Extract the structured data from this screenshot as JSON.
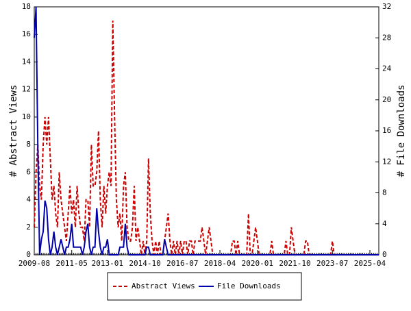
{
  "chart_data": {
    "type": "line",
    "x": [
      "2009-08",
      "2009-09",
      "2009-10",
      "2009-11",
      "2009-12",
      "2010-01",
      "2010-02",
      "2010-03",
      "2010-04",
      "2010-05",
      "2010-06",
      "2010-07",
      "2010-08",
      "2010-09",
      "2010-10",
      "2010-11",
      "2010-12",
      "2011-01",
      "2011-02",
      "2011-03",
      "2011-04",
      "2011-05",
      "2011-06",
      "2011-07",
      "2011-08",
      "2011-09",
      "2011-10",
      "2011-11",
      "2011-12",
      "2012-01",
      "2012-02",
      "2012-03",
      "2012-04",
      "2012-05",
      "2012-06",
      "2012-07",
      "2012-08",
      "2012-09",
      "2012-10",
      "2012-11",
      "2012-12",
      "2013-01",
      "2013-02",
      "2013-03",
      "2013-04",
      "2013-05",
      "2013-06",
      "2013-07",
      "2013-08",
      "2013-09",
      "2013-10",
      "2013-11",
      "2013-12",
      "2014-01",
      "2014-02",
      "2014-03",
      "2014-04",
      "2014-05",
      "2014-06",
      "2014-07",
      "2014-08",
      "2014-09",
      "2014-10",
      "2014-11",
      "2014-12",
      "2015-01",
      "2015-02",
      "2015-03",
      "2015-04",
      "2015-05",
      "2015-06",
      "2015-07",
      "2015-08",
      "2015-09",
      "2015-10",
      "2015-11",
      "2015-12",
      "2016-01",
      "2016-02",
      "2016-03",
      "2016-04",
      "2016-05",
      "2016-06",
      "2016-07",
      "2016-08",
      "2016-09",
      "2016-10",
      "2016-11",
      "2016-12",
      "2017-01",
      "2017-02",
      "2017-03",
      "2017-04",
      "2017-05",
      "2017-06",
      "2017-07",
      "2017-08",
      "2017-09",
      "2017-10",
      "2017-11",
      "2017-12",
      "2018-01",
      "2018-02",
      "2018-03",
      "2018-04",
      "2018-05",
      "2018-06",
      "2018-07",
      "2018-08",
      "2018-09",
      "2018-10",
      "2018-11",
      "2018-12",
      "2019-01",
      "2019-02",
      "2019-03",
      "2019-04",
      "2019-05",
      "2019-06",
      "2019-07",
      "2019-08",
      "2019-09",
      "2019-10",
      "2019-11",
      "2019-12",
      "2020-01",
      "2020-02",
      "2020-03",
      "2020-04",
      "2020-05",
      "2020-06",
      "2020-07",
      "2020-08",
      "2020-09",
      "2020-10",
      "2020-11",
      "2020-12",
      "2021-01",
      "2021-02",
      "2021-03",
      "2021-04",
      "2021-05",
      "2021-06",
      "2021-07",
      "2021-08",
      "2021-09",
      "2021-10",
      "2021-11",
      "2021-12",
      "2022-01",
      "2022-02",
      "2022-03",
      "2022-04",
      "2022-05",
      "2022-06",
      "2022-07",
      "2022-08",
      "2022-09",
      "2022-10",
      "2022-11",
      "2022-12",
      "2023-01",
      "2023-02",
      "2023-03",
      "2023-04",
      "2023-05",
      "2023-06",
      "2023-07",
      "2023-08",
      "2023-09",
      "2023-10",
      "2023-11",
      "2023-12",
      "2024-01",
      "2024-02",
      "2024-03",
      "2024-04",
      "2024-05",
      "2024-06",
      "2024-07",
      "2024-08",
      "2024-09",
      "2024-10",
      "2024-11",
      "2024-12",
      "2025-01",
      "2025-02",
      "2025-03",
      "2025-04",
      "2025-05",
      "2025-06",
      "2025-07",
      "2025-08",
      "2025-09"
    ],
    "xticks": [
      "2009-08",
      "2011-05",
      "2013-01",
      "2014-10",
      "2016-07",
      "2018-04",
      "2020-01",
      "2021-10",
      "2023-07",
      "2025-04"
    ],
    "ylabel": "# Abstract Views",
    "y2label": "# File Downloads",
    "ylim": [
      0,
      18
    ],
    "yticks": [
      0,
      2,
      4,
      6,
      8,
      10,
      12,
      14,
      16,
      18
    ],
    "y2lim": [
      0,
      32
    ],
    "y2ticks": [
      0,
      4,
      8,
      12,
      16,
      20,
      24,
      28,
      32
    ],
    "legend": "bottom",
    "series": [
      {
        "name": "Abstract Views",
        "color": "#cc0000",
        "dash": true,
        "values": [
          2,
          6,
          8,
          5,
          4,
          8,
          10,
          8,
          10,
          7,
          4,
          5,
          3,
          2,
          6,
          4,
          3,
          2,
          1,
          3,
          5,
          3,
          4,
          2,
          5,
          3,
          2,
          2,
          1,
          4,
          4,
          2,
          8,
          5,
          5,
          6,
          9,
          4,
          2,
          5,
          3,
          5,
          6,
          5,
          17,
          10,
          4,
          2,
          3,
          1,
          5,
          6,
          2,
          1,
          1,
          2,
          5,
          1,
          2,
          1,
          0,
          1,
          0,
          1,
          7,
          3,
          1,
          0,
          1,
          0,
          1,
          0,
          0,
          1,
          2,
          3,
          1,
          0,
          1,
          0,
          1,
          0,
          1,
          0,
          1,
          1,
          0,
          1,
          1,
          0,
          1,
          1,
          1,
          1,
          2,
          1,
          0,
          1,
          2,
          1,
          0,
          0,
          0,
          0,
          0,
          0,
          0,
          0,
          0,
          0,
          0,
          1,
          1,
          0,
          1,
          0,
          0,
          0,
          0,
          0,
          3,
          0,
          0,
          1,
          2,
          1,
          0,
          0,
          0,
          0,
          0,
          0,
          0,
          1,
          0,
          0,
          0,
          0,
          0,
          0,
          0,
          1,
          0,
          0,
          2,
          1,
          0,
          0,
          0,
          0,
          0,
          0,
          1,
          1,
          0,
          0,
          0,
          0,
          0,
          0,
          0,
          0,
          0,
          0,
          0,
          0,
          0,
          1,
          0,
          0,
          0,
          0,
          0,
          0,
          0,
          0,
          0,
          0,
          0,
          0,
          0,
          0,
          0,
          0,
          0,
          0,
          0,
          0,
          0,
          0,
          0,
          0,
          0,
          0
        ]
      },
      {
        "name": "File Downloads",
        "color": "#0000aa",
        "axis": "y2",
        "values": [
          28,
          32,
          14,
          0,
          2,
          3,
          7,
          6,
          2,
          0,
          1,
          3,
          1,
          0,
          1,
          2,
          1,
          0,
          1,
          1,
          2,
          4,
          1,
          1,
          1,
          1,
          1,
          0,
          1,
          3,
          4,
          1,
          0,
          1,
          1,
          6,
          3,
          1,
          0,
          1,
          1,
          2,
          0,
          0,
          0,
          0,
          0,
          0,
          1,
          1,
          1,
          4,
          1,
          0,
          0,
          0,
          0,
          0,
          0,
          0,
          0,
          0,
          0,
          1,
          1,
          0,
          0,
          0,
          0,
          0,
          0,
          0,
          0,
          2,
          1,
          0,
          0,
          0,
          0,
          0,
          0,
          0,
          0,
          0,
          0,
          0,
          0,
          0,
          0,
          0,
          0,
          0,
          0,
          0,
          0,
          0,
          0,
          0,
          0,
          0,
          0,
          0,
          0,
          0,
          0,
          0,
          0,
          0,
          0,
          0,
          0,
          0,
          0,
          0,
          0,
          0,
          0,
          0,
          0,
          0,
          0,
          0,
          0,
          0,
          0,
          0,
          0,
          0,
          0,
          0,
          0,
          0,
          0,
          0,
          0,
          0,
          0,
          0,
          0,
          0,
          0,
          0,
          0,
          0,
          0,
          0,
          0,
          0,
          0,
          0,
          0,
          0,
          0,
          0,
          0,
          0,
          0,
          0,
          0,
          0,
          0,
          0,
          0,
          0,
          0,
          0,
          0,
          0,
          0,
          0,
          0,
          0,
          0,
          0,
          0,
          0,
          0,
          0,
          0,
          0,
          0,
          0,
          0,
          0,
          0,
          0,
          0,
          0,
          0,
          0,
          0,
          0,
          0,
          0
        ]
      }
    ]
  }
}
